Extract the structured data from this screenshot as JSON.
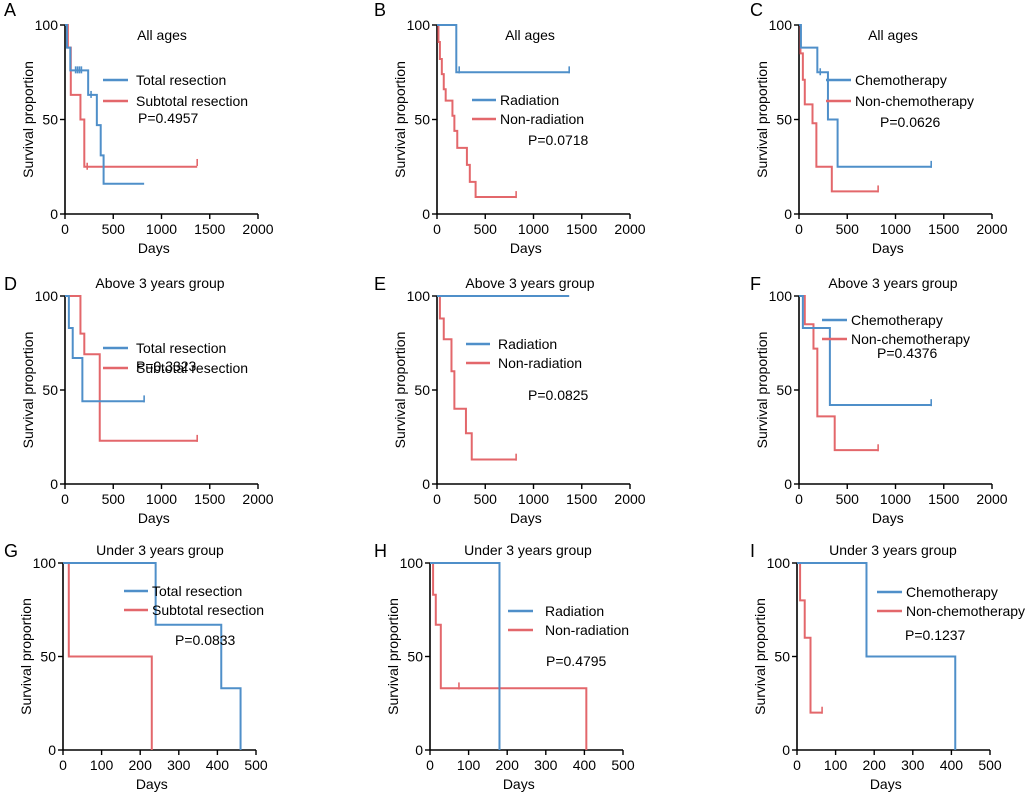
{
  "colors": {
    "series1": "#4f8fc9",
    "series2": "#e3676b",
    "axis": "#000000"
  },
  "chart_data": [
    {
      "panel": "A",
      "type": "kaplan-meier",
      "title": "All ages",
      "xlabel": "Days",
      "ylabel": "Survival proportion",
      "xlim": [
        0,
        2000
      ],
      "xticks": [
        0,
        500,
        1000,
        1500,
        2000
      ],
      "ylim": [
        0,
        100
      ],
      "yticks": [
        0,
        50,
        100
      ],
      "p_value": "P=0.4957",
      "series": [
        {
          "name": "Total resection",
          "color": "series1",
          "steps": [
            [
              0,
              100
            ],
            [
              20,
              88
            ],
            [
              55,
              76
            ],
            [
              240,
              63
            ],
            [
              330,
              47
            ],
            [
              370,
              31
            ],
            [
              400,
              16
            ],
            [
              820,
              16
            ]
          ],
          "censors": [
            [
              110,
              76
            ],
            [
              130,
              76
            ],
            [
              150,
              76
            ],
            [
              170,
              76
            ],
            [
              270,
              63
            ]
          ]
        },
        {
          "name": "Subtotal resection",
          "color": "series2",
          "steps": [
            [
              0,
              100
            ],
            [
              30,
              88
            ],
            [
              60,
              63
            ],
            [
              160,
              50
            ],
            [
              200,
              25
            ],
            [
              1370,
              25
            ]
          ],
          "censors": [
            [
              230,
              25
            ],
            [
              1370,
              27
            ]
          ]
        }
      ]
    },
    {
      "panel": "B",
      "type": "kaplan-meier",
      "title": "All ages",
      "xlabel": "Days",
      "ylabel": "Survival proportion",
      "xlim": [
        0,
        2000
      ],
      "xticks": [
        0,
        500,
        1000,
        1500,
        2000
      ],
      "ylim": [
        0,
        100
      ],
      "yticks": [
        0,
        50,
        100
      ],
      "p_value": "P=0.0718",
      "series": [
        {
          "name": "Radiation",
          "color": "series1",
          "steps": [
            [
              0,
              100
            ],
            [
              200,
              75
            ],
            [
              1370,
              75
            ]
          ],
          "censors": [
            [
              230,
              76
            ],
            [
              1370,
              76
            ]
          ]
        },
        {
          "name": "Non-radiation",
          "color": "series2",
          "steps": [
            [
              0,
              100
            ],
            [
              15,
              91
            ],
            [
              30,
              82
            ],
            [
              50,
              74
            ],
            [
              70,
              66
            ],
            [
              90,
              60
            ],
            [
              160,
              52
            ],
            [
              180,
              44
            ],
            [
              210,
              35
            ],
            [
              310,
              26
            ],
            [
              340,
              17
            ],
            [
              400,
              9
            ],
            [
              820,
              9
            ]
          ],
          "censors": [
            [
              820,
              10
            ]
          ]
        }
      ]
    },
    {
      "panel": "C",
      "type": "kaplan-meier",
      "title": "All ages",
      "xlabel": "Days",
      "ylabel": "Survival proportion",
      "xlim": [
        0,
        2000
      ],
      "xticks": [
        0,
        500,
        1000,
        1500,
        2000
      ],
      "ylim": [
        0,
        100
      ],
      "yticks": [
        0,
        50,
        100
      ],
      "p_value": "P=0.0626",
      "series": [
        {
          "name": "Chemotherapy",
          "color": "series1",
          "steps": [
            [
              0,
              100
            ],
            [
              20,
              88
            ],
            [
              190,
              75
            ],
            [
              300,
              50
            ],
            [
              400,
              25
            ],
            [
              1370,
              25
            ]
          ],
          "censors": [
            [
              220,
              75
            ],
            [
              1370,
              26
            ]
          ]
        },
        {
          "name": "Non-chemotherapy",
          "color": "series2",
          "steps": [
            [
              0,
              100
            ],
            [
              15,
              85
            ],
            [
              40,
              71
            ],
            [
              60,
              58
            ],
            [
              140,
              48
            ],
            [
              180,
              25
            ],
            [
              340,
              12
            ],
            [
              820,
              12
            ]
          ],
          "censors": [
            [
              820,
              13
            ]
          ]
        }
      ]
    },
    {
      "panel": "D",
      "type": "kaplan-meier",
      "title": "Above 3 years group",
      "xlabel": "Days",
      "ylabel": "Survival proportion",
      "xlim": [
        0,
        2000
      ],
      "xticks": [
        0,
        500,
        1000,
        1500,
        2000
      ],
      "ylim": [
        0,
        100
      ],
      "yticks": [
        0,
        50,
        100
      ],
      "p_value": "P=0.3323",
      "series": [
        {
          "name": "Total resection",
          "color": "series1",
          "steps": [
            [
              0,
              100
            ],
            [
              40,
              83
            ],
            [
              80,
              67
            ],
            [
              180,
              44
            ],
            [
              820,
              44
            ]
          ],
          "censors": [
            [
              820,
              45
            ]
          ]
        },
        {
          "name": "Subtotal resection",
          "color": "series2",
          "steps": [
            [
              0,
              100
            ],
            [
              160,
              80
            ],
            [
              200,
              69
            ],
            [
              360,
              23
            ],
            [
              1370,
              23
            ]
          ],
          "censors": [
            [
              1370,
              24
            ]
          ]
        }
      ]
    },
    {
      "panel": "E",
      "type": "kaplan-meier",
      "title": "Above 3 years group",
      "xlabel": "Days",
      "ylabel": "Survival proportion",
      "xlim": [
        0,
        2000
      ],
      "xticks": [
        0,
        500,
        1000,
        1500,
        2000
      ],
      "ylim": [
        0,
        100
      ],
      "yticks": [
        0,
        50,
        100
      ],
      "p_value": "P=0.0825",
      "series": [
        {
          "name": "Radiation",
          "color": "series1",
          "steps": [
            [
              0,
              100
            ],
            [
              1370,
              100
            ]
          ],
          "censors": []
        },
        {
          "name": "Non-radiation",
          "color": "series2",
          "steps": [
            [
              0,
              100
            ],
            [
              30,
              88
            ],
            [
              70,
              77
            ],
            [
              150,
              60
            ],
            [
              180,
              40
            ],
            [
              300,
              27
            ],
            [
              360,
              13
            ],
            [
              820,
              13
            ]
          ],
          "censors": [
            [
              820,
              14
            ]
          ]
        }
      ]
    },
    {
      "panel": "F",
      "type": "kaplan-meier",
      "title": "Above 3 years group",
      "xlabel": "Days",
      "ylabel": "Survival proportion",
      "xlim": [
        0,
        2000
      ],
      "xticks": [
        0,
        500,
        1000,
        1500,
        2000
      ],
      "ylim": [
        0,
        100
      ],
      "yticks": [
        0,
        50,
        100
      ],
      "p_value": "P=0.4376",
      "series": [
        {
          "name": "Chemotherapy",
          "color": "series1",
          "steps": [
            [
              0,
              100
            ],
            [
              40,
              83
            ],
            [
              320,
              42
            ],
            [
              1370,
              42
            ]
          ],
          "censors": [
            [
              1370,
              43
            ]
          ]
        },
        {
          "name": "Non-chemotherapy",
          "color": "series2",
          "steps": [
            [
              0,
              100
            ],
            [
              60,
              85
            ],
            [
              150,
              72
            ],
            [
              190,
              36
            ],
            [
              370,
              18
            ],
            [
              820,
              18
            ]
          ],
          "censors": [
            [
              820,
              19
            ]
          ]
        }
      ]
    },
    {
      "panel": "G",
      "type": "kaplan-meier",
      "title": "Under 3 years group",
      "xlabel": "Days",
      "ylabel": "Survival proportion",
      "xlim": [
        0,
        500
      ],
      "xticks": [
        0,
        100,
        200,
        300,
        400,
        500
      ],
      "ylim": [
        0,
        100
      ],
      "yticks": [
        0,
        50,
        100
      ],
      "p_value": "P=0.0833",
      "series": [
        {
          "name": "Total resection",
          "color": "series1",
          "steps": [
            [
              0,
              100
            ],
            [
              240,
              67
            ],
            [
              410,
              33
            ],
            [
              460,
              0
            ]
          ],
          "censors": []
        },
        {
          "name": "Subtotal resection",
          "color": "series2",
          "steps": [
            [
              0,
              100
            ],
            [
              15,
              50
            ],
            [
              230,
              0
            ]
          ],
          "censors": []
        }
      ]
    },
    {
      "panel": "H",
      "type": "kaplan-meier",
      "title": "Under 3 years group",
      "xlabel": "Days",
      "ylabel": "Survival proportion",
      "xlim": [
        0,
        500
      ],
      "xticks": [
        0,
        100,
        200,
        300,
        400,
        500
      ],
      "ylim": [
        0,
        100
      ],
      "yticks": [
        0,
        50,
        100
      ],
      "p_value": "P=0.4795",
      "series": [
        {
          "name": "Radiation",
          "color": "series1",
          "steps": [
            [
              0,
              100
            ],
            [
              180,
              0
            ]
          ],
          "censors": []
        },
        {
          "name": "Non-radiation",
          "color": "series2",
          "steps": [
            [
              0,
              100
            ],
            [
              8,
              83
            ],
            [
              15,
              67
            ],
            [
              28,
              33
            ],
            [
              405,
              0
            ]
          ],
          "censors": [
            [
              75,
              34
            ]
          ]
        }
      ]
    },
    {
      "panel": "I",
      "type": "kaplan-meier",
      "title": "Under 3 years group",
      "xlabel": "Days",
      "ylabel": "Survival proportion",
      "xlim": [
        0,
        500
      ],
      "xticks": [
        0,
        100,
        200,
        300,
        400,
        500
      ],
      "ylim": [
        0,
        100
      ],
      "yticks": [
        0,
        50,
        100
      ],
      "p_value": "P=0.1237",
      "series": [
        {
          "name": "Chemotherapy",
          "color": "series1",
          "steps": [
            [
              0,
              100
            ],
            [
              180,
              50
            ],
            [
              410,
              0
            ]
          ],
          "censors": []
        },
        {
          "name": "Non-chemotherapy",
          "color": "series2",
          "steps": [
            [
              0,
              100
            ],
            [
              8,
              80
            ],
            [
              20,
              60
            ],
            [
              35,
              20
            ],
            [
              65,
              20
            ]
          ],
          "censors": [
            [
              65,
              21
            ]
          ]
        }
      ]
    }
  ]
}
